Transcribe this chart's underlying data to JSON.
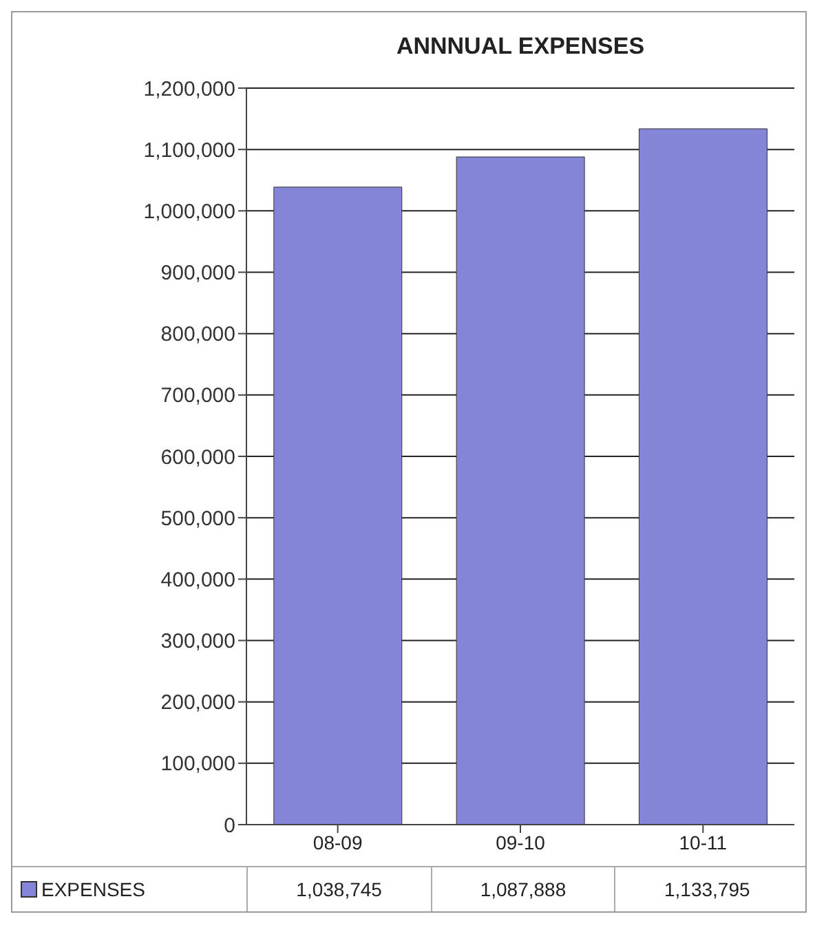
{
  "chart_data": {
    "type": "bar",
    "title": "ANNNUAL EXPENSES",
    "categories": [
      "08-09",
      "09-10",
      "10-11"
    ],
    "series": [
      {
        "name": "EXPENSES",
        "color": "#8585d8",
        "values": [
          1038745,
          1087888,
          1133795
        ],
        "value_labels": [
          "1,038,745",
          "1,087,888",
          "1,133,795"
        ]
      }
    ],
    "ylim": [
      0,
      1200000
    ],
    "yticks": [
      0,
      {
        "value": 100000,
        "label": "100,000"
      },
      {
        "value": 200000,
        "label": "200,000"
      },
      {
        "value": 300000,
        "label": "300,000"
      },
      {
        "value": 400000,
        "label": "400,000"
      },
      {
        "value": 500000,
        "label": "500,000"
      },
      {
        "value": 600000,
        "label": "600,000"
      },
      {
        "value": 700000,
        "label": "700,000"
      },
      {
        "value": 800000,
        "label": "800,000"
      },
      {
        "value": 900000,
        "label": "900,000"
      },
      {
        "value": 1000000,
        "label": "1,000,000"
      },
      {
        "value": 1100000,
        "label": "1,100,000"
      },
      {
        "value": 1200000,
        "label": "1,200,000"
      }
    ],
    "grid": "y",
    "legend": "bottom"
  }
}
